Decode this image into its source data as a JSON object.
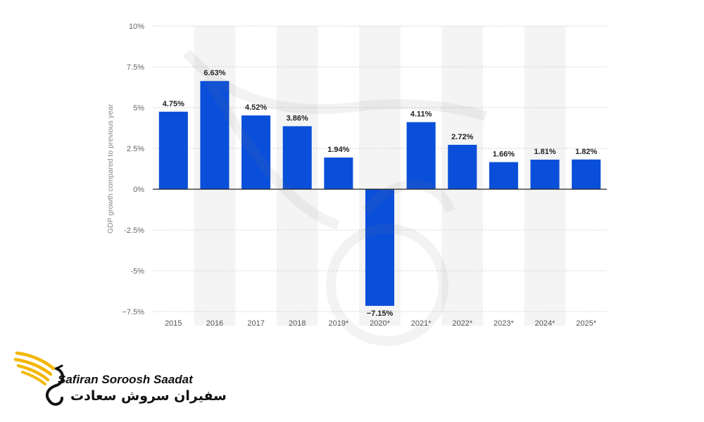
{
  "chart_data": {
    "type": "bar",
    "categories": [
      "2015",
      "2016",
      "2017",
      "2018",
      "2019*",
      "2020*",
      "2021*",
      "2022*",
      "2023*",
      "2024*",
      "2025*"
    ],
    "values": [
      4.75,
      6.63,
      4.52,
      3.86,
      1.94,
      -7.15,
      4.11,
      2.72,
      1.66,
      1.81,
      1.82
    ],
    "data_labels": [
      "4.75%",
      "6.63%",
      "4.52%",
      "3.86%",
      "1.94%",
      "−7.15%",
      "4.11%",
      "2.72%",
      "1.66%",
      "1.81%",
      "1.82%"
    ],
    "ylabel": "GDP growth compared to previous year",
    "ylim": [
      -7.5,
      10
    ],
    "yticks": [
      10,
      7.5,
      5,
      2.5,
      0,
      -2.5,
      -5,
      -7.5
    ],
    "ytick_labels": [
      "10%",
      "7.5%",
      "5%",
      "2.5%",
      "0%",
      "-2.5%",
      "-5%",
      "−7.5%"
    ],
    "grid": true,
    "bar_color": "#0a4fd9",
    "band_color": "#f4f4f4"
  },
  "brand": {
    "name_en": "Safiran Soroosh Saadat",
    "name_fa": "سفیران سروش سعادت",
    "logo_icon": "golden-wing-logo-icon",
    "accent_color": "#f2b705"
  }
}
